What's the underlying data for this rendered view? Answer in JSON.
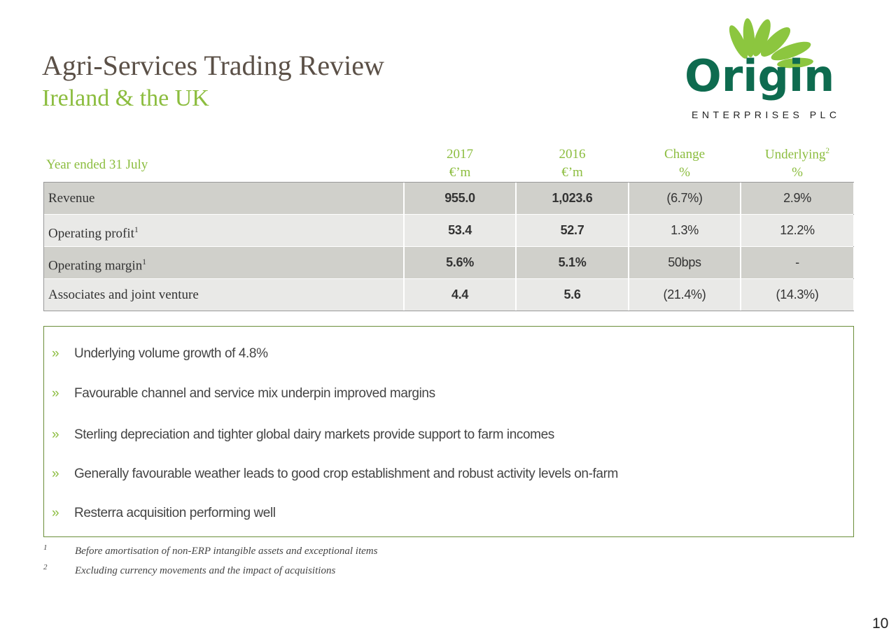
{
  "header": {
    "title": "Agri-Services Trading Review",
    "subtitle": "Ireland & the UK"
  },
  "logo": {
    "name": "Origin",
    "tagline": "ENTERPRISES PLC"
  },
  "table": {
    "header": {
      "label": "Year ended 31 July",
      "columns": [
        {
          "title": "2017",
          "unit": "€’m"
        },
        {
          "title": "2016",
          "unit": "€’m"
        },
        {
          "title": "Change",
          "unit": "%"
        },
        {
          "title": "Underlying",
          "sup": "2",
          "unit": "%"
        }
      ]
    },
    "rows": [
      {
        "label": "Revenue",
        "cells": [
          "955.0",
          "1,023.6",
          "(6.7%)",
          "2.9%"
        ]
      },
      {
        "label": "Operating profit",
        "sup": "1",
        "cells": [
          "53.4",
          "52.7",
          "1.3%",
          "12.2%"
        ]
      },
      {
        "label": "Operating margin",
        "sup": "1",
        "cells": [
          "5.6%",
          "5.1%",
          "50bps",
          "-"
        ]
      },
      {
        "label": "Associates and joint venture",
        "cells": [
          "4.4",
          "5.6",
          "(21.4%)",
          "(14.3%)"
        ]
      }
    ]
  },
  "bullet_marker": "»",
  "bullets": [
    "Underlying volume growth of 4.8%",
    "Favourable channel and service mix underpin improved margins",
    "Sterling depreciation and tighter global dairy markets provide support to farm incomes",
    "Generally favourable weather leads to good crop establishment and robust activity levels on-farm",
    "Resterra acquisition performing well"
  ],
  "footnotes": [
    {
      "marker": "1",
      "text": "Before amortisation of non-ERP intangible assets and exceptional items"
    },
    {
      "marker": "2",
      "text": "Excluding currency movements and the impact of acquisitions"
    }
  ],
  "page_number": "10"
}
